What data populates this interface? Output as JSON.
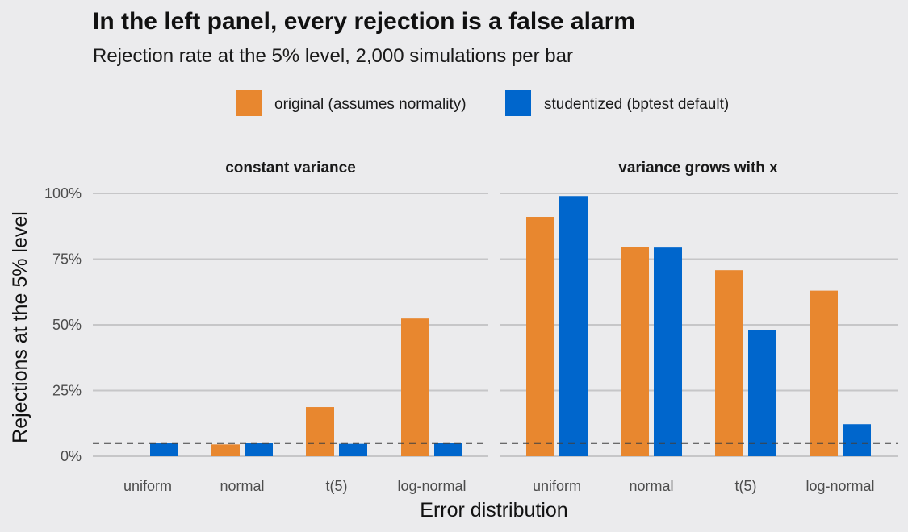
{
  "chart_data": {
    "type": "bar",
    "title": "In the left panel, every rejection is a false alarm",
    "subtitle": "Rejection rate at the 5% level, 2,000 simulations per bar",
    "xlabel": "Error distribution",
    "ylabel": "Rejections at the 5% level",
    "ylim": [
      0,
      1
    ],
    "yticks": [
      0,
      0.25,
      0.5,
      0.75,
      1.0
    ],
    "ytick_labels": [
      "0%",
      "25%",
      "50%",
      "75%",
      "100%"
    ],
    "reference_line": {
      "y": 0.05,
      "style": "dashed"
    },
    "grid": true,
    "legend_position": "top",
    "categories": [
      "uniform",
      "normal",
      "t(5)",
      "log-normal"
    ],
    "series_meta": [
      {
        "name": "original (assumes normality)",
        "color": "#e8872f"
      },
      {
        "name": "studentized (bptest default)",
        "color": "#0066cc"
      }
    ],
    "panels": [
      {
        "title": "constant variance",
        "series": [
          {
            "name": "original (assumes normality)",
            "values": [
              0.0,
              0.045,
              0.187,
              0.524
            ]
          },
          {
            "name": "studentized (bptest default)",
            "values": [
              0.049,
              0.05,
              0.047,
              0.05
            ]
          }
        ]
      },
      {
        "title": "variance grows with x",
        "series": [
          {
            "name": "original (assumes normality)",
            "values": [
              0.911,
              0.797,
              0.708,
              0.63
            ]
          },
          {
            "name": "studentized (bptest default)",
            "values": [
              0.99,
              0.794,
              0.48,
              0.122
            ]
          }
        ]
      }
    ]
  }
}
